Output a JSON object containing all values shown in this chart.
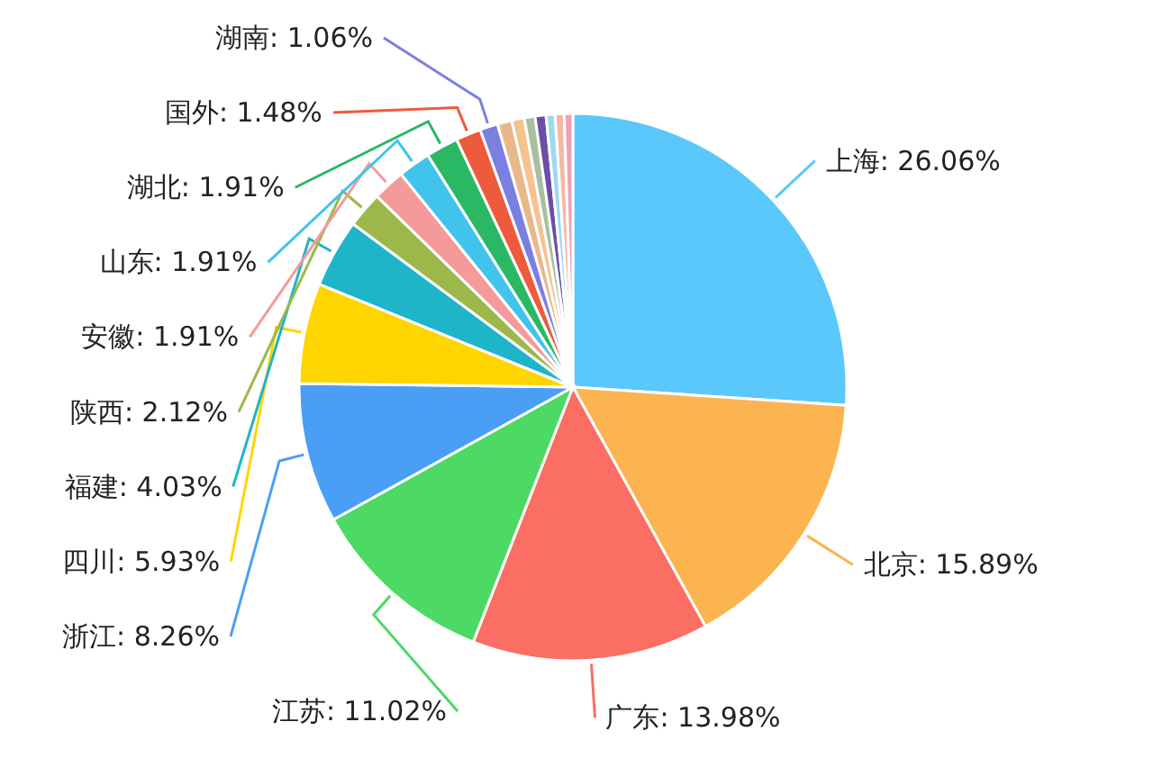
{
  "chart_data": {
    "type": "pie",
    "categories": [
      "上海",
      "北京",
      "广东",
      "江苏",
      "浙江",
      "四川",
      "福建",
      "陕西",
      "安徽",
      "山东",
      "湖北",
      "国外",
      "湖南",
      null,
      null,
      null,
      null,
      null,
      null,
      null
    ],
    "values": [
      26.06,
      15.89,
      13.98,
      11.02,
      8.26,
      5.93,
      4.03,
      2.12,
      1.91,
      1.91,
      1.91,
      1.48,
      1.06,
      0.85,
      0.74,
      0.64,
      0.64,
      0.53,
      0.53,
      0.51
    ],
    "colors": [
      "#5ac8fa",
      "#fbb450",
      "#fa6e64",
      "#4cd964",
      "#4a9ff5",
      "#ffd500",
      "#1fb5c8",
      "#9cb84a",
      "#f59a9a",
      "#40c4ec",
      "#2bb865",
      "#ee5a3c",
      "#7b7fe0",
      "#e8b88a",
      "#f5c290",
      "#a8c0a0",
      "#6a4fa8",
      "#9ed8f0",
      "#f5b8a0",
      "#f0a0b8"
    ],
    "value_labels": [
      "26.06%",
      "15.89%",
      "13.98%",
      "11.02%",
      "8.26%",
      "5.93%",
      "4.03%",
      "2.12%",
      "1.91%",
      "1.91%",
      "1.91%",
      "1.48%",
      "1.06%",
      null,
      null,
      null,
      null,
      null,
      null,
      null
    ],
    "legend": false
  }
}
